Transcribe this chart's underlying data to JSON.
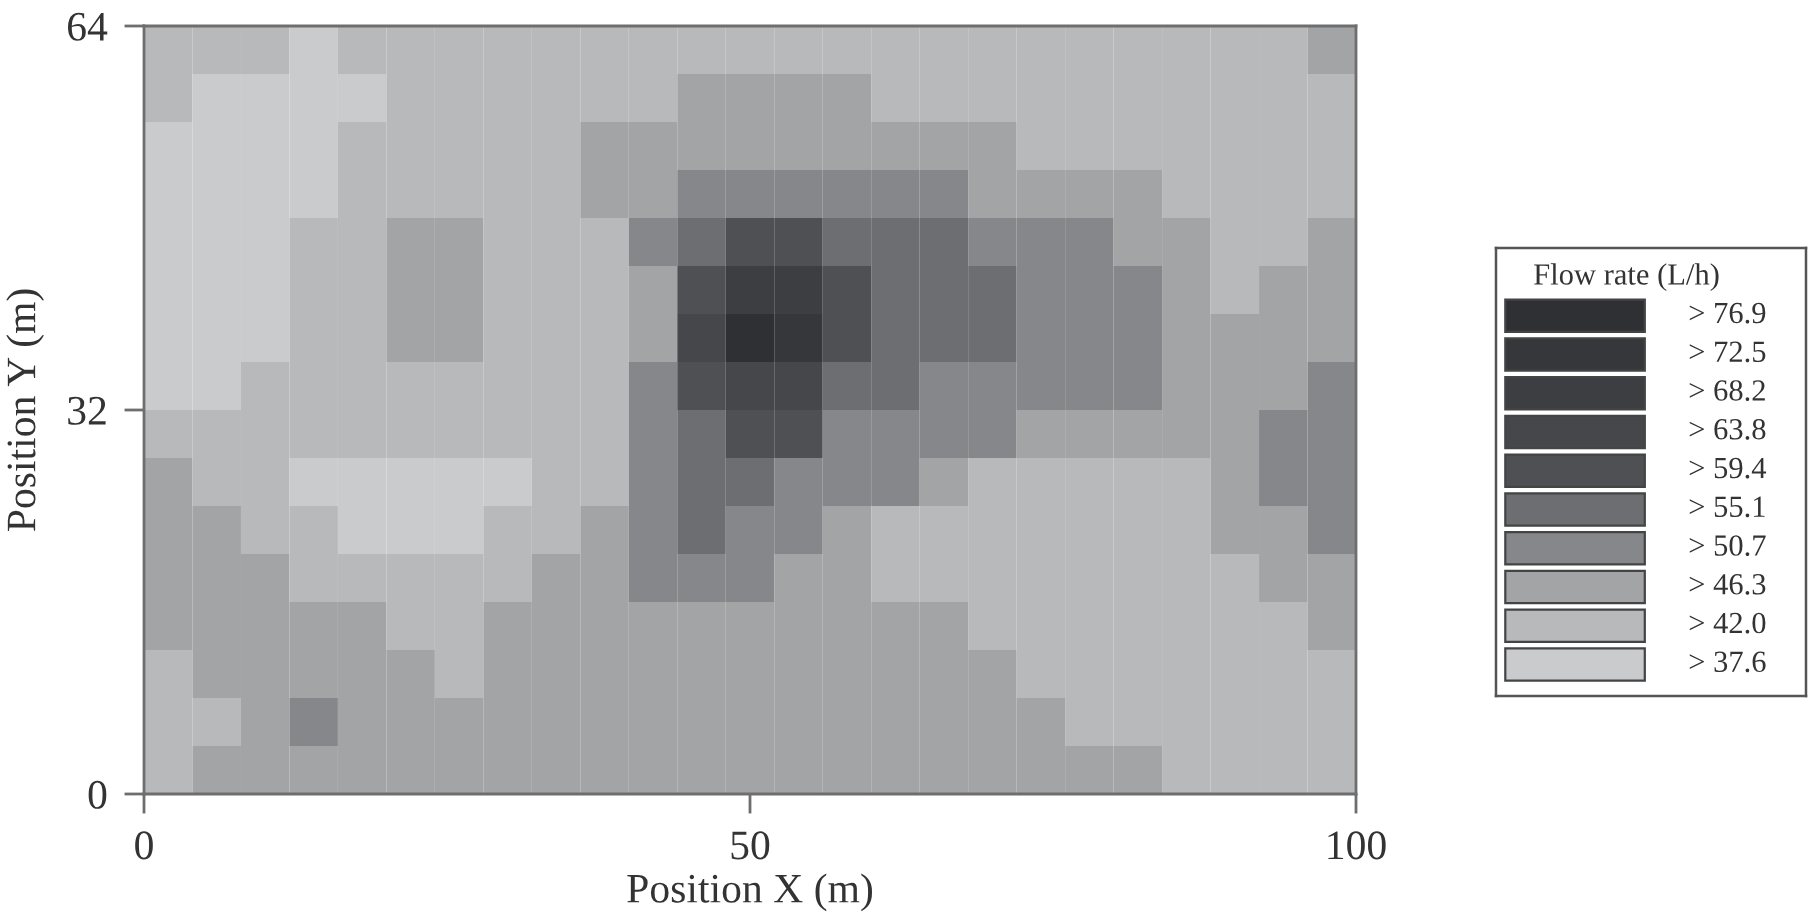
{
  "chart_data": {
    "type": "heatmap",
    "xlabel": "Position X (m)",
    "ylabel": "Position Y (m)",
    "clabel": "Flow rate (L/h)",
    "xlim": [
      0,
      100
    ],
    "ylim": [
      0,
      64
    ],
    "xticks": [
      0,
      50,
      100
    ],
    "yticks": [
      0,
      32,
      64
    ],
    "cticks": [
      {
        "value": 37.6,
        "label": "> 37.6"
      },
      {
        "value": 42.0,
        "label": "> 42.0"
      },
      {
        "value": 46.3,
        "label": "> 46.3"
      },
      {
        "value": 50.7,
        "label": "> 50.7"
      },
      {
        "value": 55.1,
        "label": "> 55.1"
      },
      {
        "value": 59.4,
        "label": "> 59.4"
      },
      {
        "value": 63.8,
        "label": "> 63.8"
      },
      {
        "value": 68.2,
        "label": "> 68.2"
      },
      {
        "value": 72.5,
        "label": "> 72.5"
      },
      {
        "value": 76.9,
        "label": "> 76.9"
      }
    ],
    "colors": [
      "#cacbcd",
      "#b8b9bb",
      "#a3a4a6",
      "#86878a",
      "#6d6e71",
      "#4e5054",
      "#45474b",
      "#3c3e42",
      "#35373b",
      "#2e3034"
    ],
    "cells": [
      [
        42.0,
        42.0,
        42.0,
        37.6,
        42.0,
        42.0,
        42.0,
        42.0,
        42.0,
        42.0,
        42.0,
        42.0,
        42.0,
        42.0,
        42.0,
        42.0,
        42.0,
        42.0,
        42.0,
        42.0,
        42.0,
        42.0,
        42.0,
        42.0,
        46.3
      ],
      [
        42.0,
        37.6,
        37.6,
        37.6,
        37.6,
        42.0,
        42.0,
        42.0,
        42.0,
        42.0,
        42.0,
        46.3,
        46.3,
        46.3,
        46.3,
        42.0,
        42.0,
        42.0,
        42.0,
        42.0,
        42.0,
        42.0,
        42.0,
        42.0,
        42.0
      ],
      [
        37.6,
        37.6,
        37.6,
        37.6,
        42.0,
        42.0,
        42.0,
        42.0,
        42.0,
        46.3,
        46.3,
        46.3,
        46.3,
        46.3,
        46.3,
        46.3,
        46.3,
        46.3,
        42.0,
        42.0,
        42.0,
        42.0,
        42.0,
        42.0,
        42.0
      ],
      [
        37.6,
        37.6,
        37.6,
        37.6,
        42.0,
        42.0,
        42.0,
        42.0,
        42.0,
        46.3,
        46.3,
        50.7,
        50.7,
        50.7,
        50.7,
        50.7,
        50.7,
        46.3,
        46.3,
        46.3,
        46.3,
        42.0,
        42.0,
        42.0,
        42.0
      ],
      [
        37.6,
        37.6,
        37.6,
        42.0,
        42.0,
        46.3,
        46.3,
        42.0,
        42.0,
        42.0,
        50.7,
        55.1,
        59.4,
        59.4,
        55.1,
        55.1,
        55.1,
        50.7,
        50.7,
        50.7,
        46.3,
        46.3,
        42.0,
        42.0,
        46.3
      ],
      [
        37.6,
        37.6,
        37.6,
        42.0,
        42.0,
        46.3,
        46.3,
        42.0,
        42.0,
        42.0,
        46.3,
        59.4,
        68.2,
        68.2,
        59.4,
        55.1,
        55.1,
        55.1,
        50.7,
        50.7,
        50.7,
        46.3,
        42.0,
        46.3,
        46.3
      ],
      [
        37.6,
        37.6,
        37.6,
        42.0,
        42.0,
        46.3,
        46.3,
        42.0,
        42.0,
        42.0,
        46.3,
        63.8,
        76.9,
        72.5,
        59.4,
        55.1,
        55.1,
        55.1,
        50.7,
        50.7,
        50.7,
        46.3,
        46.3,
        46.3,
        46.3
      ],
      [
        37.6,
        37.6,
        42.0,
        42.0,
        42.0,
        42.0,
        42.0,
        42.0,
        42.0,
        42.0,
        50.7,
        59.4,
        63.8,
        63.8,
        55.1,
        55.1,
        50.7,
        50.7,
        50.7,
        50.7,
        50.7,
        46.3,
        46.3,
        46.3,
        50.7
      ],
      [
        42.0,
        42.0,
        42.0,
        42.0,
        42.0,
        42.0,
        42.0,
        42.0,
        42.0,
        42.0,
        50.7,
        55.1,
        59.4,
        59.4,
        50.7,
        50.7,
        50.7,
        50.7,
        46.3,
        46.3,
        46.3,
        46.3,
        46.3,
        50.7,
        50.7
      ],
      [
        46.3,
        42.0,
        42.0,
        37.6,
        37.6,
        37.6,
        37.6,
        37.6,
        42.0,
        42.0,
        50.7,
        55.1,
        55.1,
        50.7,
        50.7,
        50.7,
        46.3,
        42.0,
        42.0,
        42.0,
        42.0,
        42.0,
        46.3,
        50.7,
        50.7
      ],
      [
        46.3,
        46.3,
        42.0,
        42.0,
        37.6,
        37.6,
        37.6,
        42.0,
        42.0,
        46.3,
        50.7,
        55.1,
        50.7,
        50.7,
        46.3,
        42.0,
        42.0,
        42.0,
        42.0,
        42.0,
        42.0,
        42.0,
        46.3,
        46.3,
        50.7
      ],
      [
        46.3,
        46.3,
        46.3,
        42.0,
        42.0,
        42.0,
        42.0,
        42.0,
        46.3,
        46.3,
        50.7,
        50.7,
        50.7,
        46.3,
        46.3,
        42.0,
        42.0,
        42.0,
        42.0,
        42.0,
        42.0,
        42.0,
        42.0,
        46.3,
        46.3
      ],
      [
        46.3,
        46.3,
        46.3,
        46.3,
        46.3,
        42.0,
        42.0,
        46.3,
        46.3,
        46.3,
        46.3,
        46.3,
        46.3,
        46.3,
        46.3,
        46.3,
        46.3,
        42.0,
        42.0,
        42.0,
        42.0,
        42.0,
        42.0,
        42.0,
        46.3
      ],
      [
        42.0,
        46.3,
        46.3,
        46.3,
        46.3,
        46.3,
        42.0,
        46.3,
        46.3,
        46.3,
        46.3,
        46.3,
        46.3,
        46.3,
        46.3,
        46.3,
        46.3,
        46.3,
        42.0,
        42.0,
        42.0,
        42.0,
        42.0,
        42.0,
        42.0
      ],
      [
        42.0,
        42.0,
        46.3,
        50.7,
        46.3,
        46.3,
        46.3,
        46.3,
        46.3,
        46.3,
        46.3,
        46.3,
        46.3,
        46.3,
        46.3,
        46.3,
        46.3,
        46.3,
        46.3,
        42.0,
        42.0,
        42.0,
        42.0,
        42.0,
        42.0
      ],
      [
        42.0,
        46.3,
        46.3,
        46.3,
        46.3,
        46.3,
        46.3,
        46.3,
        46.3,
        46.3,
        46.3,
        46.3,
        46.3,
        46.3,
        46.3,
        46.3,
        46.3,
        46.3,
        46.3,
        46.3,
        46.3,
        42.0,
        42.0,
        42.0,
        42.0
      ]
    ]
  }
}
